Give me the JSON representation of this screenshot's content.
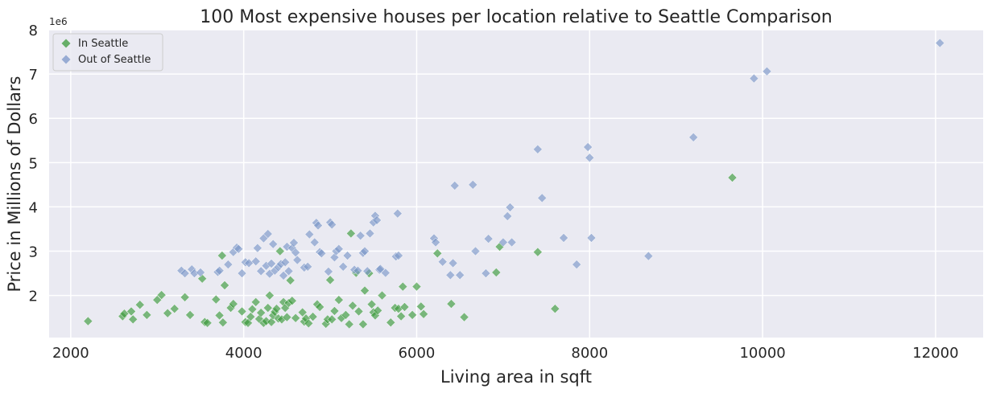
{
  "chart_data": {
    "type": "scatter",
    "title": "100 Most expensive houses per location relative to Seattle Comparison",
    "xlabel": "Living area in sqft",
    "ylabel": "Price in Millions of Dollars",
    "y_offset_label": "1e6",
    "xlim": [
      1750,
      12550
    ],
    "ylim": [
      1050000,
      8000000
    ],
    "xticks": [
      2000,
      4000,
      6000,
      8000,
      10000,
      12000
    ],
    "yticks": [
      2000000,
      3000000,
      4000000,
      5000000,
      6000000,
      7000000,
      8000000
    ],
    "xtick_labels": [
      "2000",
      "4000",
      "6000",
      "8000",
      "10000",
      "12000"
    ],
    "ytick_labels": [
      "2",
      "3",
      "4",
      "5",
      "6",
      "7",
      "8"
    ],
    "grid": true,
    "legend_position": "top-left",
    "marker": "diamond",
    "series": [
      {
        "name": "In Seattle",
        "color": "#3a9a3a",
        "points": [
          [
            2200,
            1420000
          ],
          [
            2600,
            1530000
          ],
          [
            2620,
            1590000
          ],
          [
            2700,
            1640000
          ],
          [
            2720,
            1460000
          ],
          [
            2800,
            1790000
          ],
          [
            2880,
            1560000
          ],
          [
            3000,
            1900000
          ],
          [
            3050,
            2010000
          ],
          [
            3120,
            1600000
          ],
          [
            3200,
            1700000
          ],
          [
            3320,
            1960000
          ],
          [
            3380,
            1560000
          ],
          [
            3520,
            2380000
          ],
          [
            3550,
            1400000
          ],
          [
            3580,
            1380000
          ],
          [
            3680,
            1910000
          ],
          [
            3720,
            1550000
          ],
          [
            3750,
            2900000
          ],
          [
            3760,
            1390000
          ],
          [
            3780,
            2230000
          ],
          [
            3850,
            1720000
          ],
          [
            3880,
            1810000
          ],
          [
            3980,
            1640000
          ],
          [
            4020,
            1400000
          ],
          [
            4050,
            1380000
          ],
          [
            4080,
            1520000
          ],
          [
            4100,
            1690000
          ],
          [
            4140,
            1850000
          ],
          [
            4180,
            1470000
          ],
          [
            4200,
            1610000
          ],
          [
            4230,
            1380000
          ],
          [
            4260,
            1420000
          ],
          [
            4280,
            1720000
          ],
          [
            4300,
            2000000
          ],
          [
            4320,
            1400000
          ],
          [
            4340,
            1550000
          ],
          [
            4360,
            1630000
          ],
          [
            4380,
            1700000
          ],
          [
            4400,
            1480000
          ],
          [
            4420,
            3000000
          ],
          [
            4440,
            1460000
          ],
          [
            4460,
            1850000
          ],
          [
            4480,
            1720000
          ],
          [
            4500,
            1510000
          ],
          [
            4520,
            1830000
          ],
          [
            4540,
            2340000
          ],
          [
            4560,
            1880000
          ],
          [
            4600,
            1490000
          ],
          [
            4680,
            1620000
          ],
          [
            4700,
            1410000
          ],
          [
            4720,
            1480000
          ],
          [
            4750,
            1370000
          ],
          [
            4800,
            1520000
          ],
          [
            4850,
            1800000
          ],
          [
            4880,
            1740000
          ],
          [
            4950,
            1360000
          ],
          [
            4970,
            1460000
          ],
          [
            5000,
            2350000
          ],
          [
            5020,
            1460000
          ],
          [
            5050,
            1650000
          ],
          [
            5100,
            1900000
          ],
          [
            5130,
            1490000
          ],
          [
            5180,
            1560000
          ],
          [
            5220,
            1350000
          ],
          [
            5240,
            3400000
          ],
          [
            5260,
            1770000
          ],
          [
            5300,
            2510000
          ],
          [
            5330,
            1640000
          ],
          [
            5380,
            1350000
          ],
          [
            5400,
            2110000
          ],
          [
            5450,
            2500000
          ],
          [
            5480,
            1800000
          ],
          [
            5500,
            1620000
          ],
          [
            5520,
            1550000
          ],
          [
            5550,
            1660000
          ],
          [
            5600,
            2000000
          ],
          [
            5700,
            1390000
          ],
          [
            5750,
            1720000
          ],
          [
            5790,
            1700000
          ],
          [
            5820,
            1530000
          ],
          [
            5840,
            2200000
          ],
          [
            5860,
            1740000
          ],
          [
            5950,
            1560000
          ],
          [
            6000,
            2200000
          ],
          [
            6050,
            1750000
          ],
          [
            6080,
            1580000
          ],
          [
            6240,
            2950000
          ],
          [
            6400,
            1810000
          ],
          [
            6550,
            1510000
          ],
          [
            6920,
            2520000
          ],
          [
            6960,
            3100000
          ],
          [
            7400,
            2980000
          ],
          [
            7600,
            1700000
          ],
          [
            9650,
            4660000
          ]
        ]
      },
      {
        "name": "Out of Seattle",
        "color": "#7b96c8",
        "points": [
          [
            3280,
            2560000
          ],
          [
            3320,
            2500000
          ],
          [
            3400,
            2590000
          ],
          [
            3430,
            2500000
          ],
          [
            3500,
            2520000
          ],
          [
            3700,
            2530000
          ],
          [
            3720,
            2560000
          ],
          [
            3820,
            2700000
          ],
          [
            3880,
            2980000
          ],
          [
            3920,
            3080000
          ],
          [
            3940,
            3050000
          ],
          [
            3980,
            2500000
          ],
          [
            4020,
            2750000
          ],
          [
            4060,
            2730000
          ],
          [
            4140,
            2770000
          ],
          [
            4160,
            3070000
          ],
          [
            4200,
            2550000
          ],
          [
            4230,
            3290000
          ],
          [
            4260,
            2670000
          ],
          [
            4280,
            3390000
          ],
          [
            4300,
            2490000
          ],
          [
            4320,
            2720000
          ],
          [
            4340,
            3160000
          ],
          [
            4360,
            2560000
          ],
          [
            4400,
            2640000
          ],
          [
            4430,
            2710000
          ],
          [
            4460,
            2450000
          ],
          [
            4480,
            2750000
          ],
          [
            4500,
            3100000
          ],
          [
            4520,
            2550000
          ],
          [
            4560,
            3070000
          ],
          [
            4580,
            3190000
          ],
          [
            4600,
            2970000
          ],
          [
            4620,
            2800000
          ],
          [
            4700,
            2630000
          ],
          [
            4740,
            2650000
          ],
          [
            4760,
            3380000
          ],
          [
            4820,
            3200000
          ],
          [
            4840,
            3640000
          ],
          [
            4860,
            3580000
          ],
          [
            4880,
            2980000
          ],
          [
            4900,
            2950000
          ],
          [
            4980,
            2540000
          ],
          [
            5000,
            3650000
          ],
          [
            5020,
            3600000
          ],
          [
            5050,
            2860000
          ],
          [
            5070,
            3000000
          ],
          [
            5100,
            3050000
          ],
          [
            5150,
            2650000
          ],
          [
            5200,
            2900000
          ],
          [
            5280,
            2580000
          ],
          [
            5320,
            2560000
          ],
          [
            5350,
            3350000
          ],
          [
            5380,
            2960000
          ],
          [
            5400,
            3000000
          ],
          [
            5430,
            2550000
          ],
          [
            5460,
            3400000
          ],
          [
            5500,
            3650000
          ],
          [
            5520,
            3800000
          ],
          [
            5540,
            3700000
          ],
          [
            5570,
            2580000
          ],
          [
            5580,
            2600000
          ],
          [
            5640,
            2510000
          ],
          [
            5760,
            2880000
          ],
          [
            5780,
            3850000
          ],
          [
            5790,
            2900000
          ],
          [
            6200,
            3290000
          ],
          [
            6220,
            3200000
          ],
          [
            6300,
            2760000
          ],
          [
            6390,
            2460000
          ],
          [
            6420,
            2730000
          ],
          [
            6440,
            4480000
          ],
          [
            6500,
            2460000
          ],
          [
            6650,
            4500000
          ],
          [
            6680,
            3000000
          ],
          [
            6800,
            2500000
          ],
          [
            6830,
            3280000
          ],
          [
            7000,
            3200000
          ],
          [
            7050,
            3790000
          ],
          [
            7080,
            3990000
          ],
          [
            7100,
            3200000
          ],
          [
            7400,
            5300000
          ],
          [
            7450,
            4200000
          ],
          [
            7700,
            3300000
          ],
          [
            7850,
            2700000
          ],
          [
            7980,
            5350000
          ],
          [
            8000,
            5110000
          ],
          [
            8020,
            3300000
          ],
          [
            8680,
            2890000
          ],
          [
            9200,
            5570000
          ],
          [
            9900,
            6900000
          ],
          [
            10050,
            7060000
          ],
          [
            12050,
            7700000
          ]
        ]
      }
    ]
  }
}
